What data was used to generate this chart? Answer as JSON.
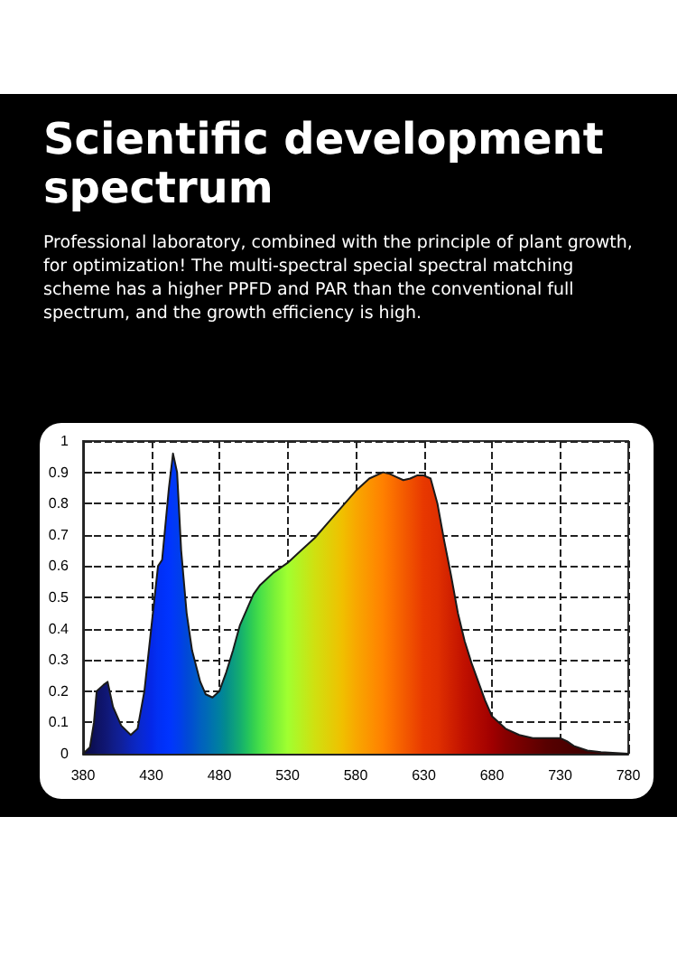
{
  "chart_data": {
    "type": "area",
    "title": "Scientific development spectrum",
    "subtitle": "Professional laboratory, combined with the principle of plant growth, for optimization! The multi-spectral special spectral matching scheme has a higher PPFD and PAR than the conventional full spectrum, and the growth efficiency is high.",
    "x": [
      380,
      385,
      388,
      390,
      395,
      398,
      402,
      408,
      415,
      420,
      425,
      430,
      435,
      438,
      443,
      446,
      449,
      452,
      456,
      460,
      466,
      470,
      475,
      480,
      485,
      490,
      495,
      500,
      505,
      510,
      520,
      530,
      540,
      550,
      560,
      570,
      580,
      590,
      600,
      605,
      610,
      615,
      620,
      625,
      630,
      635,
      640,
      645,
      650,
      655,
      660,
      665,
      670,
      675,
      680,
      690,
      700,
      710,
      720,
      730,
      735,
      740,
      750,
      760,
      780
    ],
    "series": [
      {
        "color": "#1a1a1a",
        "colors": [
          "#0a0a40",
          "#0c0e50",
          "#0d1058",
          "#0e1260",
          "#0f1570",
          "#101878",
          "#101c88",
          "#10209a",
          "#0c24b8",
          "#0a28c8",
          "#0828d8",
          "#0428e8",
          "#0230f4",
          "#0030f8",
          "#0034ff",
          "#0038f8",
          "#003cf0",
          "#0040e8",
          "#0048d8",
          "#0050d0",
          "#0060c0",
          "#0068b8",
          "#0074ac",
          "#0080a0",
          "#048c8c",
          "#0c9c80",
          "#14ac70",
          "#20c060",
          "#34d050",
          "#48e048",
          "#78f038",
          "#a0ff30",
          "#b8f020",
          "#d0e010",
          "#e0d008",
          "#f0c000",
          "#f8a800",
          "#fc9400",
          "#ff8000",
          "#fc7400",
          "#f86800",
          "#f45c00",
          "#f05000",
          "#ec4400",
          "#e83800",
          "#e43400",
          "#e03000",
          "#d82800",
          "#d02000",
          "#c81800",
          "#c01000",
          "#b80c00",
          "#b00800",
          "#a80400",
          "#a00000",
          "#880000",
          "#780000",
          "#680000",
          "#580000",
          "#500000",
          "#4c0000",
          "#480000",
          "#400000",
          "#3a0000",
          "#300000"
        ],
        "values": [
          0,
          0.02,
          0.1,
          0.2,
          0.22,
          0.23,
          0.15,
          0.09,
          0.06,
          0.08,
          0.2,
          0.4,
          0.6,
          0.62,
          0.85,
          0.96,
          0.9,
          0.65,
          0.45,
          0.33,
          0.23,
          0.19,
          0.18,
          0.2,
          0.26,
          0.33,
          0.41,
          0.46,
          0.51,
          0.54,
          0.58,
          0.61,
          0.65,
          0.69,
          0.74,
          0.79,
          0.84,
          0.88,
          0.9,
          0.895,
          0.885,
          0.875,
          0.88,
          0.89,
          0.89,
          0.88,
          0.8,
          0.68,
          0.57,
          0.45,
          0.36,
          0.29,
          0.23,
          0.17,
          0.12,
          0.08,
          0.06,
          0.05,
          0.05,
          0.05,
          0.04,
          0.025,
          0.01,
          0.005,
          0
        ]
      }
    ],
    "xlim": [
      380,
      780
    ],
    "xticks": [
      380,
      430,
      480,
      530,
      580,
      630,
      680,
      730,
      780
    ],
    "ylim": [
      0,
      1
    ],
    "yticks": [
      0,
      0.1,
      0.2,
      0.3,
      0.4,
      0.5,
      0.6,
      0.7,
      0.8,
      0.9,
      1
    ],
    "grid": true,
    "marker": "none",
    "line_style": "solid"
  }
}
